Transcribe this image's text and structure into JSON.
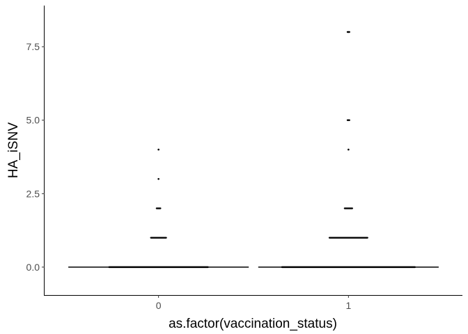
{
  "chart_data": {
    "type": "scatter",
    "xlabel": "as.factor(vaccination_status)",
    "ylabel": "HA_iSNV",
    "categories": [
      "0",
      "1"
    ],
    "ylim": [
      -0.95,
      8.9
    ],
    "yticks": [
      0.0,
      2.5,
      5.0,
      7.5
    ],
    "ytick_labels": [
      "0.0",
      "2.5",
      "5.0",
      "7.5"
    ],
    "grid": false,
    "legend": "none",
    "median_lines": [
      {
        "category": "0",
        "value": 0
      },
      {
        "category": "1",
        "value": 0
      }
    ],
    "groups": [
      {
        "category": "0",
        "points": [
          {
            "y": 0,
            "spread": 0.26
          },
          {
            "y": 1,
            "spread": 0.04
          },
          {
            "y": 2,
            "spread": 0.01
          },
          {
            "y": 3,
            "spread": 0
          },
          {
            "y": 4,
            "spread": 0
          }
        ]
      },
      {
        "category": "1",
        "points": [
          {
            "y": 0,
            "spread": 0.35
          },
          {
            "y": 1,
            "spread": 0.1
          },
          {
            "y": 2,
            "spread": 0.02
          },
          {
            "y": 4,
            "spread": 0
          },
          {
            "y": 5,
            "spread": 0.005
          },
          {
            "y": 8,
            "spread": 0.005
          }
        ]
      }
    ],
    "colors": {
      "points": "#000000",
      "axis": "#000000",
      "ticks": "#4d4d4d"
    }
  }
}
